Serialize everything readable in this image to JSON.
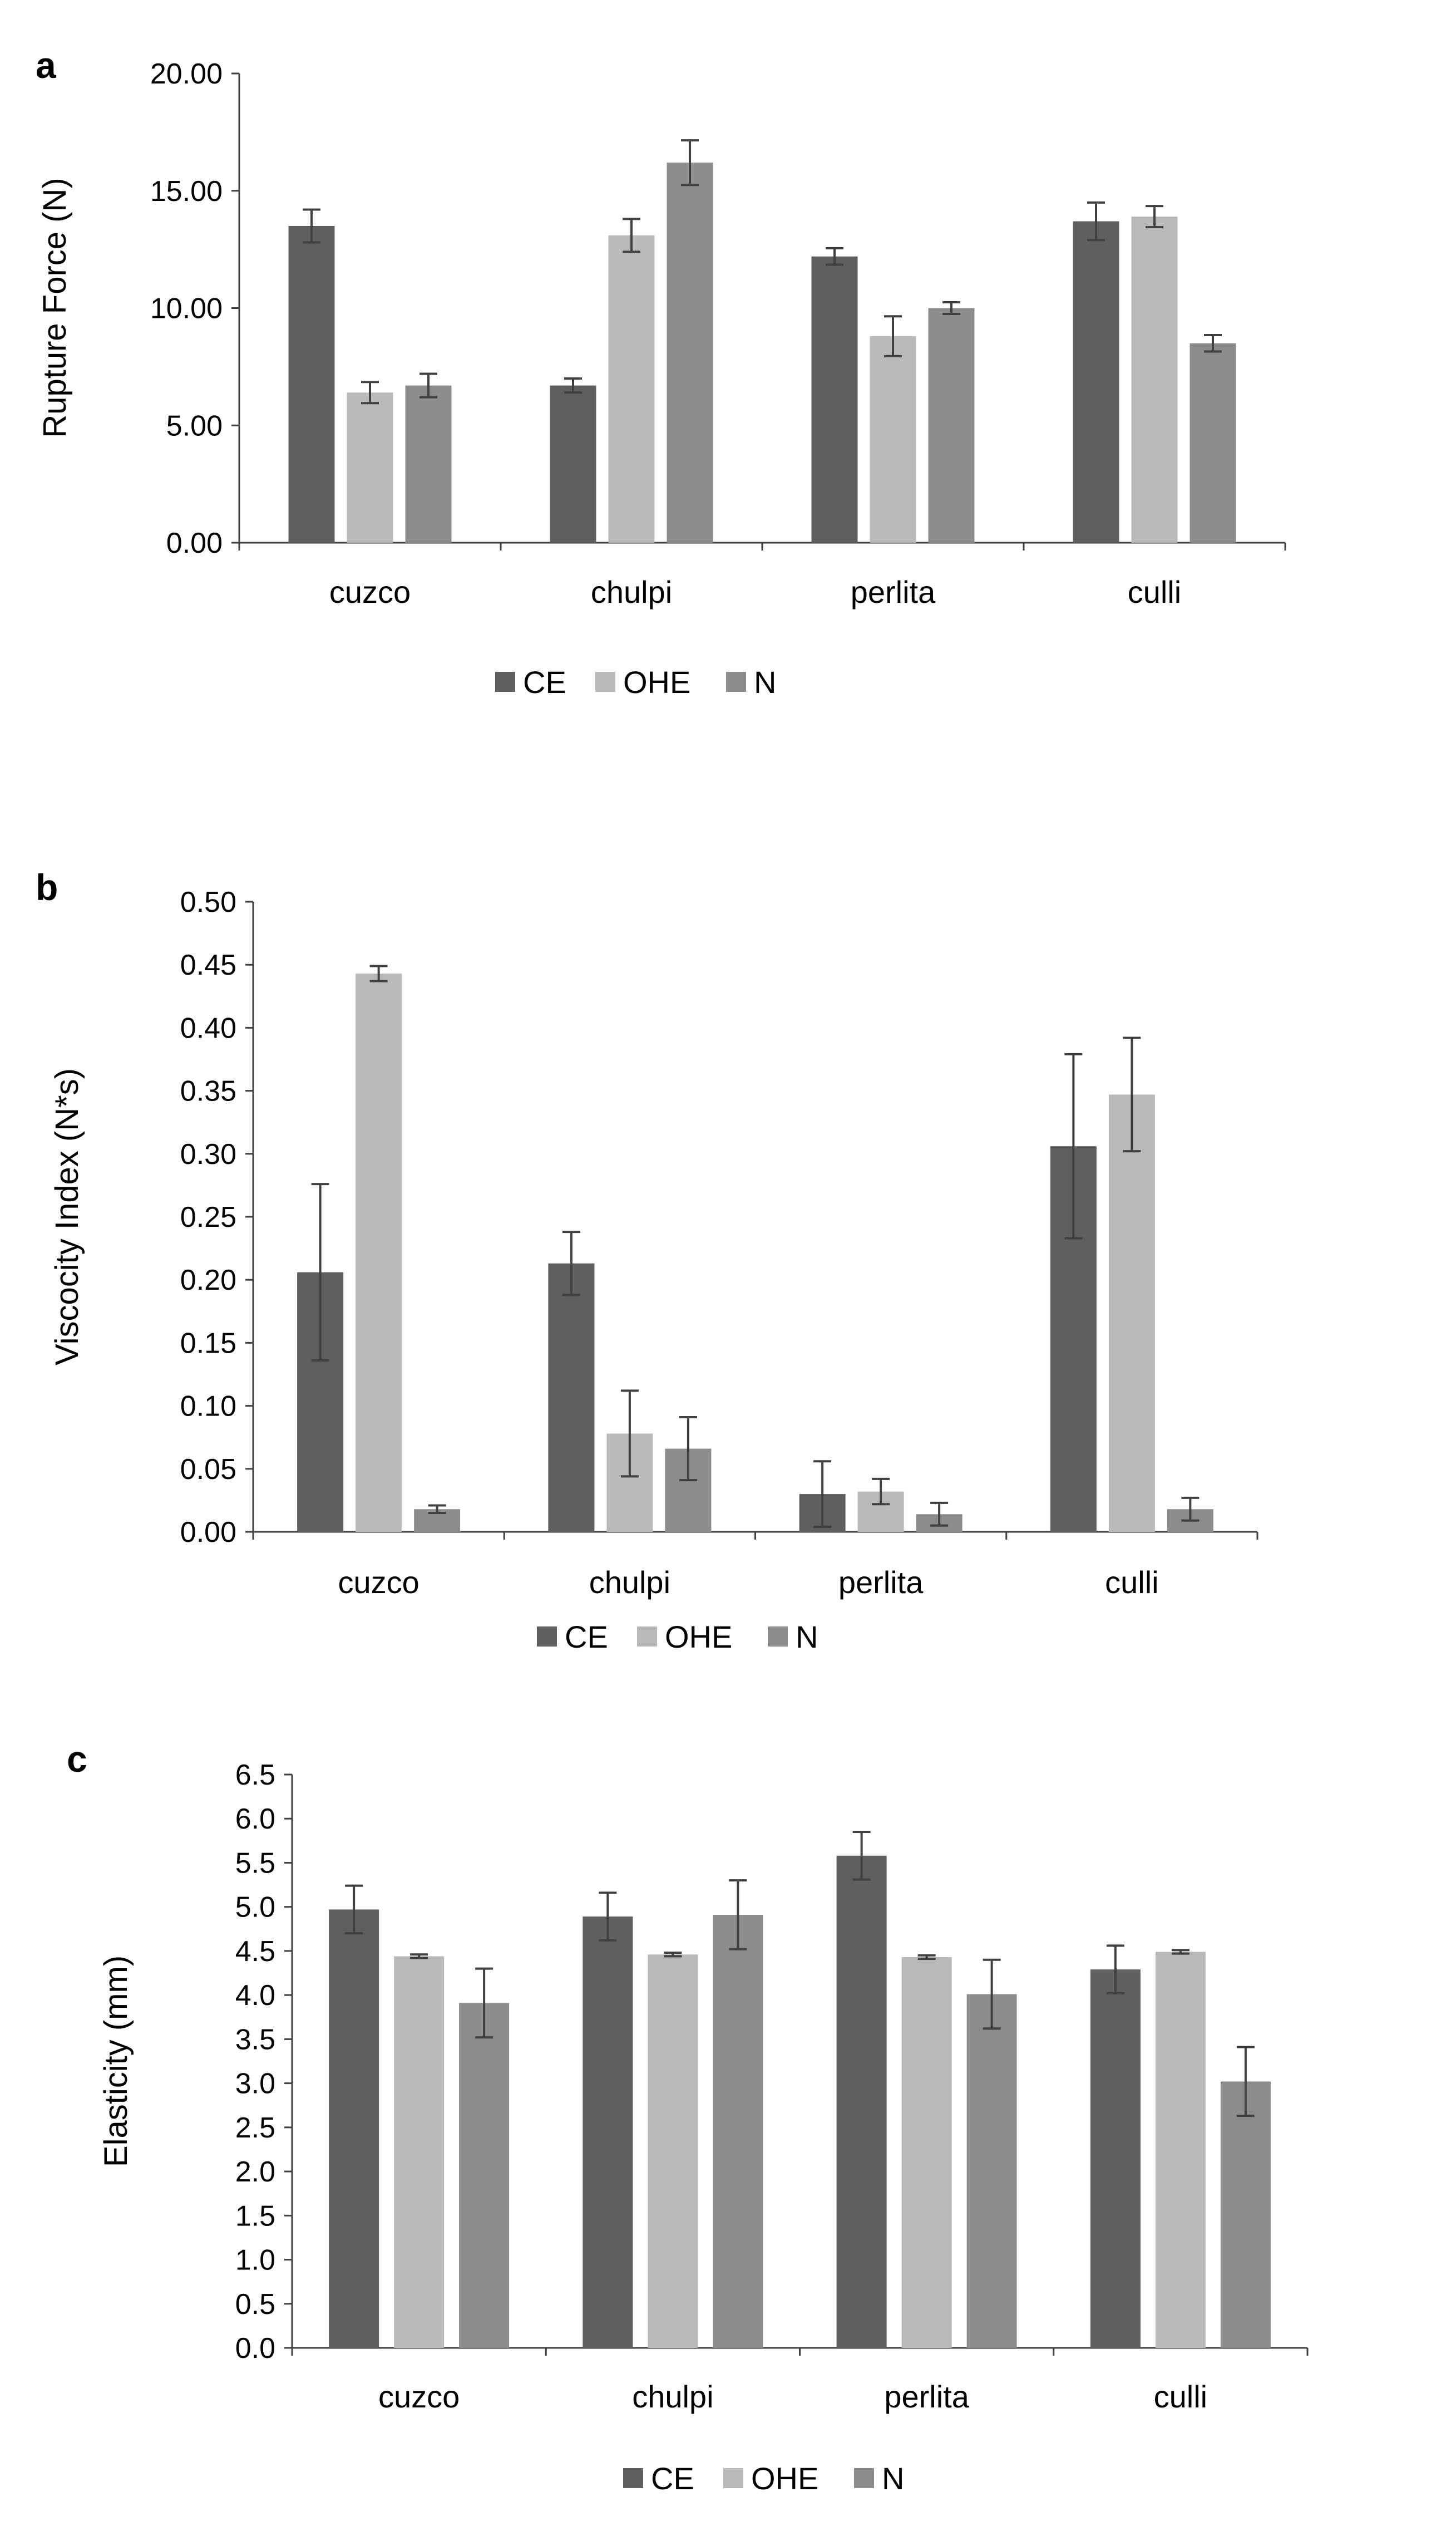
{
  "colors": {
    "CE": "#5f5f5f",
    "OHE": "#b9b9b9",
    "N": "#8c8c8c",
    "error_bar": "#404040",
    "axis": "#404040"
  },
  "legend": [
    "CE",
    "OHE",
    "N"
  ],
  "chart_data": [
    {
      "panel_label": "a",
      "type": "bar",
      "ylabel": "Rupture Force (N)",
      "ylim": [
        0,
        20
      ],
      "yticks": [
        "0.00",
        "5.00",
        "10.00",
        "15.00",
        "20.00"
      ],
      "categories": [
        "cuzco",
        "chulpi",
        "perlita",
        "culli"
      ],
      "series": [
        {
          "name": "CE",
          "values": [
            13.5,
            6.7,
            12.2,
            13.7
          ],
          "errors": [
            0.7,
            0.3,
            0.35,
            0.8
          ]
        },
        {
          "name": "OHE",
          "values": [
            6.4,
            13.1,
            8.8,
            13.9
          ],
          "errors": [
            0.45,
            0.7,
            0.85,
            0.45
          ]
        },
        {
          "name": "N",
          "values": [
            6.7,
            16.2,
            10.0,
            8.5
          ],
          "errors": [
            0.5,
            0.95,
            0.25,
            0.35
          ]
        }
      ]
    },
    {
      "panel_label": "b",
      "type": "bar",
      "ylabel": "Viscocity Index (N*s)",
      "ylim": [
        0,
        0.5
      ],
      "yticks": [
        "0.00",
        "0.05",
        "0.10",
        "0.15",
        "0.20",
        "0.25",
        "0.30",
        "0.35",
        "0.40",
        "0.45",
        "0.50"
      ],
      "categories": [
        "cuzco",
        "chulpi",
        "perlita",
        "culli"
      ],
      "series": [
        {
          "name": "CE",
          "values": [
            0.206,
            0.213,
            0.03,
            0.306
          ],
          "errors": [
            0.07,
            0.025,
            0.026,
            0.073
          ]
        },
        {
          "name": "OHE",
          "values": [
            0.443,
            0.078,
            0.032,
            0.347
          ],
          "errors": [
            0.006,
            0.034,
            0.01,
            0.045
          ]
        },
        {
          "name": "N",
          "values": [
            0.018,
            0.066,
            0.014,
            0.018
          ],
          "errors": [
            0.003,
            0.025,
            0.009,
            0.009
          ]
        }
      ]
    },
    {
      "panel_label": "c",
      "type": "bar",
      "ylabel": "Elasticity (mm)",
      "ylim": [
        0,
        6.5
      ],
      "yticks": [
        "0.0",
        "0.5",
        "1.0",
        "1.5",
        "2.0",
        "2.5",
        "3.0",
        "3.5",
        "4.0",
        "4.5",
        "5.0",
        "5.5",
        "6.0",
        "6.5"
      ],
      "categories": [
        "cuzco",
        "chulpi",
        "perlita",
        "culli"
      ],
      "series": [
        {
          "name": "CE",
          "values": [
            4.97,
            4.89,
            5.58,
            4.29
          ],
          "errors": [
            0.27,
            0.27,
            0.27,
            0.27
          ]
        },
        {
          "name": "OHE",
          "values": [
            4.44,
            4.46,
            4.43,
            4.49
          ],
          "errors": [
            0.02,
            0.02,
            0.02,
            0.02
          ]
        },
        {
          "name": "N",
          "values": [
            3.91,
            4.91,
            4.01,
            3.02
          ],
          "errors": [
            0.39,
            0.39,
            0.39,
            0.39
          ]
        }
      ]
    }
  ]
}
